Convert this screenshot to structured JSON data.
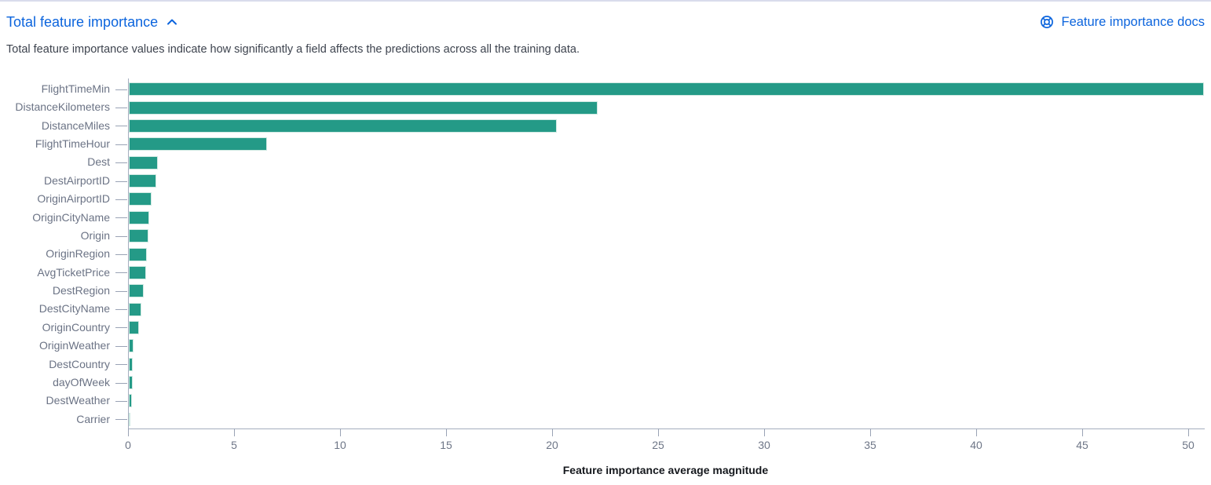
{
  "header": {
    "title": "Total feature importance",
    "docs_link_label": "Feature importance docs"
  },
  "description": "Total feature importance values indicate how significantly a field affects the predictions across all the training data.",
  "colors": {
    "accent_blue": "#0b64dd",
    "bar_teal": "#249a87",
    "axis_text_gray": "#6b7385",
    "body_text": "#3d434e"
  },
  "chart_data": {
    "type": "bar",
    "orientation": "horizontal",
    "title": "",
    "xlabel": "Feature importance average magnitude",
    "ylabel": "",
    "categories": [
      "FlightTimeMin",
      "DistanceKilometers",
      "DistanceMiles",
      "FlightTimeHour",
      "Dest",
      "DestAirportID",
      "OriginAirportID",
      "OriginCityName",
      "Origin",
      "OriginRegion",
      "AvgTicketPrice",
      "DestRegion",
      "DestCityName",
      "OriginCountry",
      "OriginWeather",
      "DestCountry",
      "dayOfWeek",
      "DestWeather",
      "Carrier"
    ],
    "values": [
      50.7,
      22.1,
      20.2,
      6.5,
      1.37,
      1.3,
      1.08,
      0.97,
      0.92,
      0.87,
      0.82,
      0.7,
      0.58,
      0.48,
      0.22,
      0.2,
      0.17,
      0.14,
      0.05
    ],
    "x_ticks": [
      0,
      5,
      10,
      15,
      20,
      25,
      30,
      35,
      40,
      45,
      50
    ],
    "xlim": [
      0,
      50.7
    ],
    "grid": false,
    "legend": "none"
  }
}
